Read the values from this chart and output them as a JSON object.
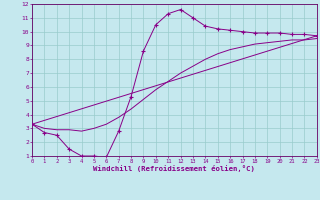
{
  "xlabel": "Windchill (Refroidissement éolien,°C)",
  "xlim": [
    0,
    23
  ],
  "ylim": [
    1,
    12
  ],
  "bg_color": "#c5e8ee",
  "line_color": "#880088",
  "grid_color": "#99cccc",
  "curve1_x": [
    0,
    1,
    2,
    3,
    4,
    5,
    6,
    7,
    8,
    9,
    10,
    11,
    12,
    13,
    14,
    15,
    16,
    17,
    18,
    19,
    20,
    21,
    22,
    23
  ],
  "curve1_y": [
    3.3,
    2.7,
    2.5,
    1.5,
    1.0,
    1.0,
    0.9,
    2.8,
    5.3,
    8.6,
    10.5,
    11.3,
    11.6,
    11.0,
    10.4,
    10.2,
    10.1,
    10.0,
    9.9,
    9.9,
    9.9,
    9.8,
    9.8,
    9.7
  ],
  "curve2_x": [
    0,
    1,
    2,
    3,
    4,
    5,
    6,
    7,
    8,
    9,
    10,
    11,
    12,
    13,
    14,
    15,
    16,
    17,
    18,
    19,
    20,
    21,
    22,
    23
  ],
  "curve2_y": [
    3.3,
    3.0,
    2.9,
    2.9,
    2.8,
    3.0,
    3.3,
    3.8,
    4.4,
    5.1,
    5.8,
    6.4,
    7.0,
    7.5,
    8.0,
    8.4,
    8.7,
    8.9,
    9.1,
    9.2,
    9.3,
    9.4,
    9.4,
    9.5
  ],
  "curve3_x": [
    0,
    23
  ],
  "curve3_y": [
    3.3,
    9.7
  ]
}
